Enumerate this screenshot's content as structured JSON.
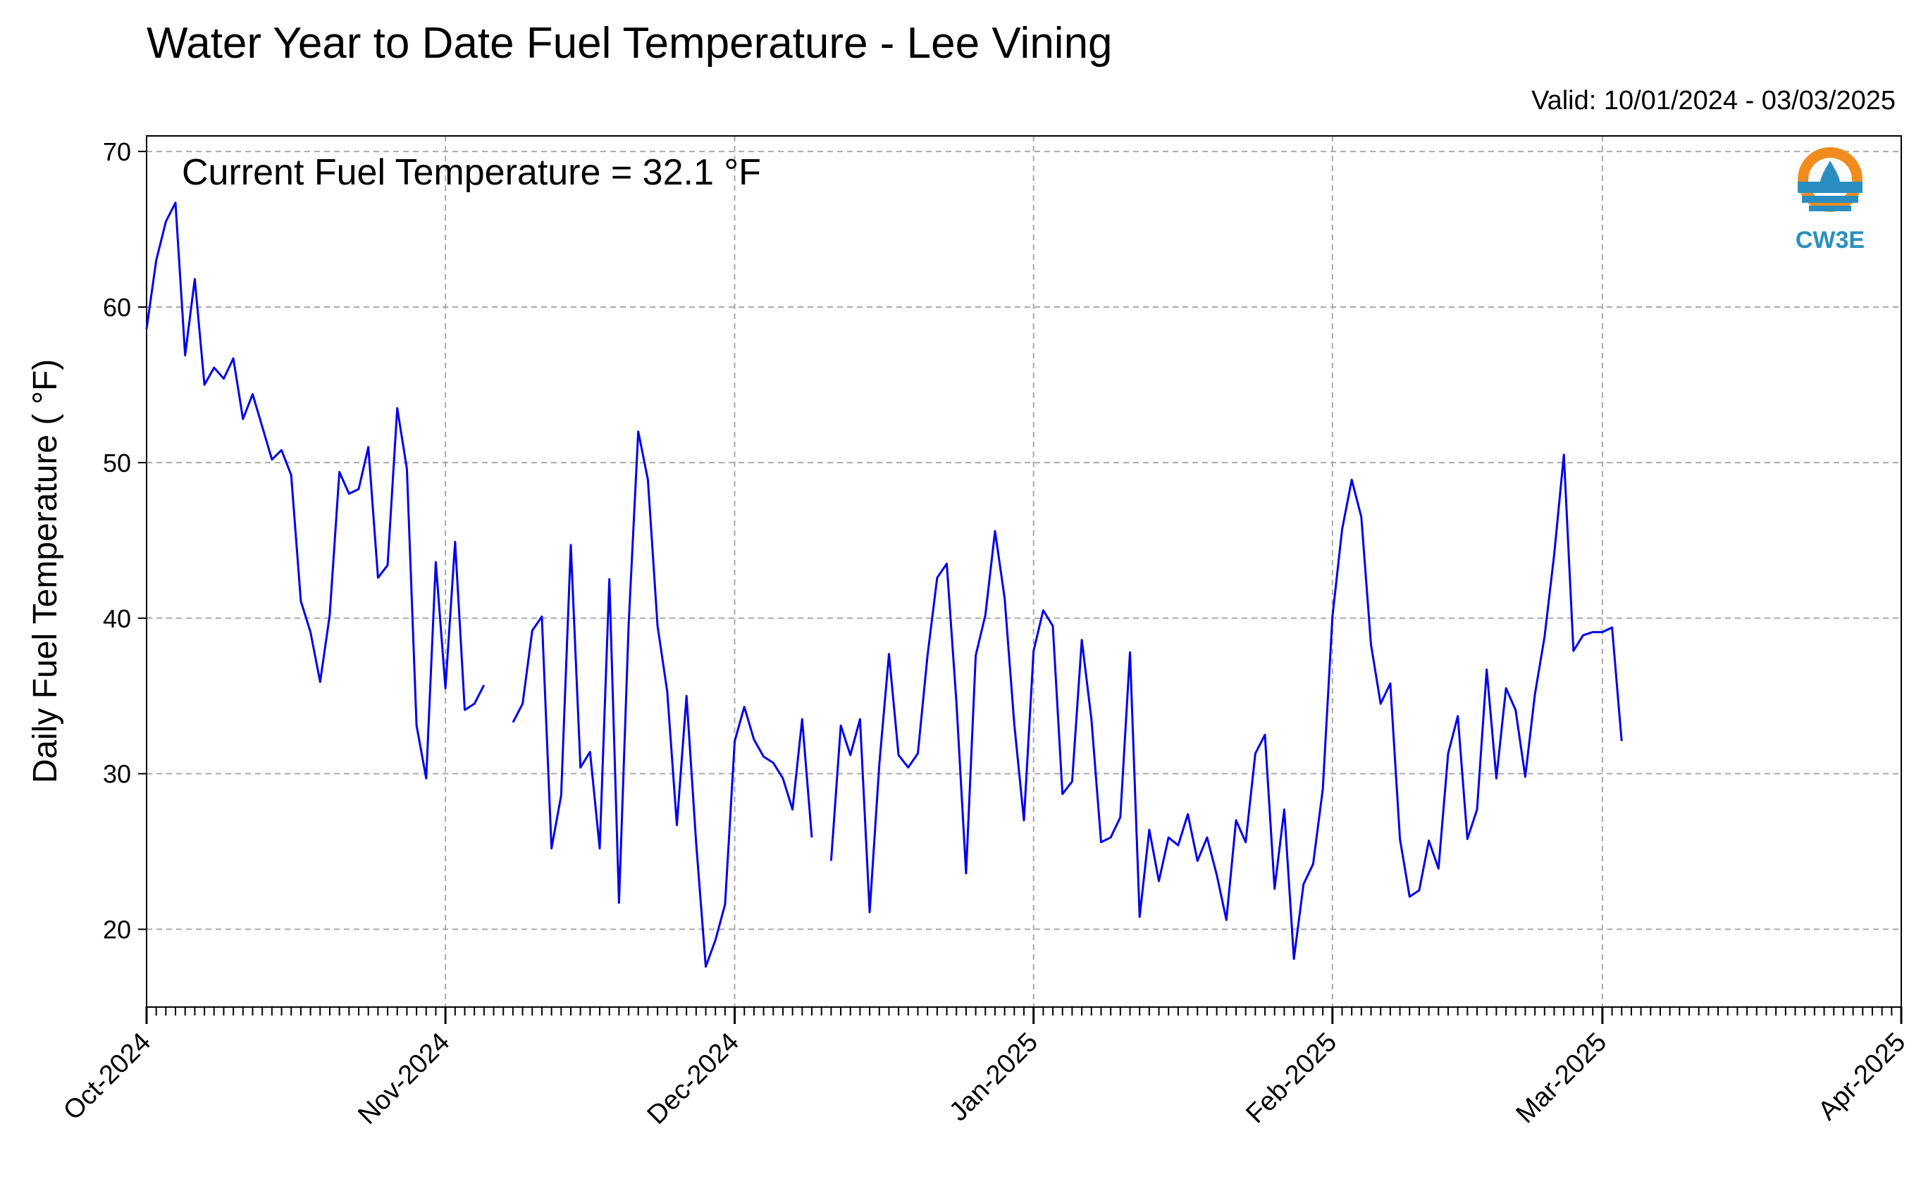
{
  "header": {
    "title": "Water Year to Date Fuel Temperature - Lee Vining",
    "valid": "Valid: 10/01/2024 - 03/03/2025"
  },
  "logo": {
    "icon": "water-drop-icon",
    "text": "CW3E",
    "colors": {
      "orange": "#f08c1e",
      "blue": "#2a8fc0"
    }
  },
  "chart_data": {
    "type": "line",
    "title": "Water Year to Date Fuel Temperature - Lee Vining",
    "annotation": "Current Fuel Temperature = 32.1  °F",
    "ylabel": "Daily Fuel Temperature ( °F)",
    "xlabel": "",
    "ylim": [
      15,
      71
    ],
    "xlim": [
      "2024-10-01",
      "2025-04-01"
    ],
    "yticks": [
      20,
      30,
      40,
      50,
      60,
      70
    ],
    "xticks": [
      "Oct-2024",
      "Nov-2024",
      "Dec-2024",
      "Jan-2025",
      "Feb-2025",
      "Mar-2025",
      "Apr-2025"
    ],
    "grid": true,
    "line_color": "#0000ee",
    "x_start": "2024-10-01",
    "series": [
      {
        "values": [
          58.6,
          63.0,
          65.5,
          66.7,
          56.9,
          61.8,
          55.0,
          56.1,
          55.4,
          56.7,
          52.8,
          54.4,
          52.3,
          50.2,
          50.8,
          49.2,
          41.1,
          39.1,
          35.9,
          40.2,
          49.4,
          48.0,
          48.3,
          51.0,
          42.6,
          43.4,
          53.5,
          49.6,
          33.1,
          29.7,
          43.6,
          35.5,
          44.9,
          34.1,
          34.5,
          35.7,
          null,
          null,
          33.3,
          34.5,
          39.2,
          40.1,
          25.2,
          28.6,
          44.7,
          30.4,
          31.4,
          25.2,
          42.5,
          21.7,
          39.6,
          52.0,
          48.9,
          39.5,
          35.3,
          26.7,
          35.0,
          25.6,
          17.6,
          19.3,
          21.6,
          32.1,
          34.3,
          32.2,
          31.1,
          30.7,
          29.7,
          27.7,
          33.5,
          25.9,
          null,
          24.4,
          33.1,
          31.2,
          33.5,
          21.1,
          30.6,
          37.7,
          31.2,
          30.4,
          31.3,
          37.6,
          42.6,
          43.5,
          34.6,
          23.6,
          37.6,
          40.2,
          45.6,
          41.3,
          33.2,
          27.0,
          37.9,
          40.5,
          39.5,
          28.7,
          29.5,
          38.6,
          33.5,
          25.6,
          25.9,
          27.2,
          37.8,
          20.8,
          26.4,
          23.1,
          25.9,
          25.4,
          27.4,
          24.4,
          25.9,
          23.5,
          20.6,
          27.0,
          25.6,
          31.3,
          32.5,
          22.6,
          27.7,
          18.1,
          22.9,
          24.2,
          29.0,
          40.1,
          45.7,
          48.9,
          46.5,
          38.3,
          34.5,
          35.8,
          25.8,
          22.1,
          22.5,
          25.7,
          23.9,
          31.3,
          33.7,
          25.8,
          27.7,
          36.7,
          29.7,
          35.5,
          34.1,
          29.8,
          35.1,
          38.8,
          44.1,
          50.5,
          37.9,
          38.9,
          39.1,
          39.1,
          39.4,
          32.1
        ]
      }
    ]
  }
}
